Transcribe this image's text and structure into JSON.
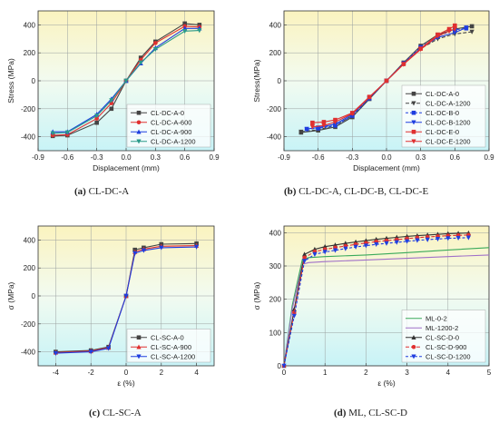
{
  "chart_data": [
    {
      "id": "a",
      "type": "line",
      "caption_letter": "(a)",
      "caption_text": " CL-DC-A",
      "xlabel": "Displacement (mm)",
      "ylabel": "Stress (MPa)",
      "xlim": [
        -0.9,
        0.9
      ],
      "ylim": [
        -500,
        500
      ],
      "xticks": [
        -0.9,
        -0.6,
        -0.3,
        0.0,
        0.3,
        0.6,
        0.9
      ],
      "xtick_labels": [
        "-0.9",
        "-0.6",
        "-0.3",
        "0.0",
        "0.3",
        "0.6",
        "0.9"
      ],
      "yticks": [
        -400,
        -200,
        0,
        200,
        400
      ],
      "ytick_labels": [
        "-400",
        "-200",
        "0",
        "200",
        "400"
      ],
      "legend_position": "bottom-right",
      "series": [
        {
          "name": "CL-DC-A-0",
          "color": "#444444",
          "marker": "square",
          "dash": "",
          "x": [
            -0.75,
            -0.6,
            -0.3,
            -0.15,
            0,
            0.15,
            0.3,
            0.6,
            0.75
          ],
          "y": [
            -395,
            -390,
            -300,
            -200,
            0,
            165,
            280,
            410,
            400
          ]
        },
        {
          "name": "CL-DC-A-600",
          "color": "#e03030",
          "marker": "circle",
          "dash": "",
          "x": [
            -0.75,
            -0.6,
            -0.3,
            -0.15,
            0,
            0.15,
            0.3,
            0.6,
            0.75
          ],
          "y": [
            -390,
            -385,
            -270,
            -160,
            0,
            150,
            270,
            390,
            385
          ]
        },
        {
          "name": "CL-DC-A-900",
          "color": "#1f3ee0",
          "marker": "triangle",
          "dash": "",
          "x": [
            -0.75,
            -0.6,
            -0.3,
            -0.15,
            0,
            0.15,
            0.3,
            0.6,
            0.75
          ],
          "y": [
            -365,
            -365,
            -240,
            -130,
            0,
            125,
            235,
            375,
            375
          ]
        },
        {
          "name": "CL-DC-A-1200",
          "color": "#2a9a8a",
          "marker": "tri-down",
          "dash": "",
          "x": [
            -0.75,
            -0.6,
            -0.3,
            -0.15,
            0,
            0.15,
            0.3,
            0.6,
            0.75
          ],
          "y": [
            -375,
            -370,
            -250,
            -140,
            0,
            130,
            225,
            355,
            360
          ]
        }
      ]
    },
    {
      "id": "b",
      "type": "line",
      "caption_letter": "(b)",
      "caption_text": " CL-DC-A, CL-DC-B, CL-DC-E",
      "xlabel": "Displacement (mm)",
      "ylabel": "Stress(MPa)",
      "xlim": [
        -0.9,
        0.9
      ],
      "ylim": [
        -500,
        500
      ],
      "xticks": [
        -0.9,
        -0.6,
        -0.3,
        0.0,
        0.3,
        0.6,
        0.9
      ],
      "xtick_labels": [
        "-0.9",
        "-0.6",
        "-0.3",
        "0.0",
        "0.3",
        "0.6",
        "0.9"
      ],
      "yticks": [
        -400,
        -200,
        0,
        200,
        400
      ],
      "ytick_labels": [
        "-400",
        "-200",
        "0",
        "200",
        "400"
      ],
      "legend_position": "bottom-right",
      "series": [
        {
          "name": "CL-DC-A-0",
          "color": "#444444",
          "marker": "square",
          "dash": "",
          "x": [
            -0.75,
            -0.6,
            -0.45,
            -0.3,
            -0.15,
            0,
            0.15,
            0.3,
            0.45,
            0.6,
            0.75
          ],
          "y": [
            -370,
            -355,
            -330,
            -260,
            -130,
            0,
            130,
            250,
            330,
            370,
            390
          ]
        },
        {
          "name": "CL-DC-A-1200",
          "color": "#444444",
          "marker": "tri-down",
          "dash": "4,2",
          "x": [
            -0.75,
            -0.6,
            -0.45,
            -0.3,
            -0.15,
            0,
            0.15,
            0.3,
            0.45,
            0.6,
            0.75
          ],
          "y": [
            -365,
            -350,
            -320,
            -250,
            -125,
            0,
            120,
            230,
            300,
            335,
            350
          ]
        },
        {
          "name": "CL-DC-B-0",
          "color": "#1f3ee0",
          "marker": "square",
          "dash": "3,2",
          "x": [
            -0.7,
            -0.6,
            -0.45,
            -0.3,
            -0.15,
            0,
            0.15,
            0.3,
            0.45,
            0.6,
            0.7
          ],
          "y": [
            -345,
            -340,
            -320,
            -250,
            -125,
            0,
            125,
            240,
            320,
            365,
            375
          ]
        },
        {
          "name": "CL-DC-B-1200",
          "color": "#1f3ee0",
          "marker": "tri-down",
          "dash": "",
          "x": [
            -0.7,
            -0.6,
            -0.45,
            -0.3,
            -0.15,
            0,
            0.15,
            0.3,
            0.45,
            0.6,
            0.7
          ],
          "y": [
            -345,
            -335,
            -310,
            -240,
            -120,
            0,
            120,
            235,
            310,
            345,
            380
          ]
        },
        {
          "name": "CL-DC-E-0",
          "color": "#e03030",
          "marker": "square",
          "dash": "",
          "x": [
            -0.65,
            -0.55,
            -0.45,
            -0.3,
            -0.15,
            0,
            0.15,
            0.3,
            0.45,
            0.55,
            0.6
          ],
          "y": [
            -300,
            -295,
            -280,
            -230,
            -115,
            0,
            120,
            230,
            330,
            370,
            395
          ]
        },
        {
          "name": "CL-DC-E-1200",
          "color": "#e03030",
          "marker": "tri-down",
          "dash": "",
          "x": [
            -0.65,
            -0.55,
            -0.45,
            -0.3,
            -0.15,
            0,
            0.15,
            0.3,
            0.45,
            0.55,
            0.6
          ],
          "y": [
            -330,
            -320,
            -295,
            -235,
            -118,
            0,
            118,
            225,
            320,
            355,
            370
          ]
        }
      ]
    },
    {
      "id": "c",
      "type": "line",
      "caption_letter": "(c)",
      "caption_text": " CL-SC-A",
      "xlabel": "ε (%)",
      "ylabel": "σ (MPa)",
      "xlim": [
        -5,
        5
      ],
      "ylim": [
        -500,
        500
      ],
      "xticks": [
        -4,
        -2,
        0,
        2,
        4
      ],
      "xtick_labels": [
        "-4",
        "-2",
        "0",
        "2",
        "4"
      ],
      "yticks": [
        -400,
        -200,
        0,
        200,
        400
      ],
      "ytick_labels": [
        "-400",
        "-200",
        "0",
        "200",
        "400"
      ],
      "legend_position": "bottom-right",
      "series": [
        {
          "name": "CL-SC-A-0",
          "color": "#444444",
          "marker": "square",
          "dash": "",
          "x": [
            -4,
            -2,
            -1,
            0,
            0.5,
            1,
            2,
            4
          ],
          "y": [
            -400,
            -390,
            -365,
            0,
            330,
            345,
            370,
            375
          ]
        },
        {
          "name": "CL-SC-A-900",
          "color": "#e03030",
          "marker": "triangle",
          "dash": "",
          "x": [
            -4,
            -2,
            -1,
            0,
            0.5,
            1,
            2,
            4
          ],
          "y": [
            -405,
            -395,
            -370,
            0,
            315,
            335,
            355,
            360
          ]
        },
        {
          "name": "CL-SC-A-1200",
          "color": "#1f3ee0",
          "marker": "tri-down",
          "dash": "",
          "x": [
            -4,
            -2,
            -1,
            0,
            0.5,
            1,
            2,
            4
          ],
          "y": [
            -410,
            -400,
            -375,
            0,
            305,
            325,
            345,
            350
          ]
        }
      ]
    },
    {
      "id": "d",
      "type": "line",
      "caption_letter": "(d)",
      "caption_text": " ML, CL-SC-D",
      "xlabel": "ε (%)",
      "ylabel": "σ (MPa)",
      "xlim": [
        0,
        5
      ],
      "ylim": [
        0,
        420
      ],
      "xticks": [
        0,
        1,
        2,
        3,
        4,
        5
      ],
      "xtick_labels": [
        "0",
        "1",
        "2",
        "3",
        "4",
        "5"
      ],
      "yticks": [
        0,
        100,
        200,
        300,
        400
      ],
      "ytick_labels": [
        "0",
        "100",
        "200",
        "300",
        "400"
      ],
      "legend_position": "bottom-right",
      "series": [
        {
          "name": "ML-0-2",
          "color": "#3aaa5a",
          "marker": "none",
          "dash": "",
          "x": [
            0,
            0.2,
            0.45,
            0.6,
            1,
            2,
            3,
            4,
            5
          ],
          "y": [
            0,
            180,
            320,
            325,
            328,
            333,
            340,
            348,
            355
          ]
        },
        {
          "name": "ML-1200-2",
          "color": "#a070c8",
          "marker": "none",
          "dash": "",
          "x": [
            0,
            0.2,
            0.45,
            0.6,
            1,
            2,
            3,
            4,
            5
          ],
          "y": [
            0,
            170,
            305,
            310,
            313,
            318,
            323,
            328,
            333
          ]
        },
        {
          "name": "CL-SC-D-0",
          "color": "#333333",
          "marker": "triangle",
          "dash": "",
          "x": [
            0,
            0.25,
            0.5,
            0.75,
            1,
            1.25,
            1.5,
            1.75,
            2,
            2.25,
            2.5,
            2.75,
            3,
            3.25,
            3.5,
            3.75,
            4,
            4.25,
            4.5
          ],
          "y": [
            0,
            170,
            335,
            350,
            358,
            363,
            368,
            372,
            376,
            380,
            383,
            386,
            389,
            391,
            393,
            395,
            397,
            398,
            399
          ]
        },
        {
          "name": "CL-SC-D-900",
          "color": "#e03030",
          "marker": "circle",
          "dash": "4,2",
          "x": [
            0,
            0.25,
            0.5,
            0.75,
            1,
            1.25,
            1.5,
            1.75,
            2,
            2.25,
            2.5,
            2.75,
            3,
            3.25,
            3.5,
            3.75,
            4,
            4.25,
            4.5
          ],
          "y": [
            0,
            160,
            325,
            343,
            350,
            355,
            360,
            365,
            369,
            373,
            376,
            379,
            382,
            385,
            387,
            389,
            391,
            392,
            393
          ]
        },
        {
          "name": "CL-SC-D-1200",
          "color": "#1f3ee0",
          "marker": "tri-down",
          "dash": "3,2",
          "x": [
            0,
            0.25,
            0.5,
            0.75,
            1,
            1.25,
            1.5,
            1.75,
            2,
            2.25,
            2.5,
            2.75,
            3,
            3.25,
            3.5,
            3.75,
            4,
            4.25,
            4.5
          ],
          "y": [
            0,
            150,
            315,
            335,
            342,
            347,
            352,
            357,
            361,
            365,
            368,
            371,
            374,
            377,
            379,
            381,
            383,
            384,
            385
          ]
        }
      ]
    }
  ]
}
